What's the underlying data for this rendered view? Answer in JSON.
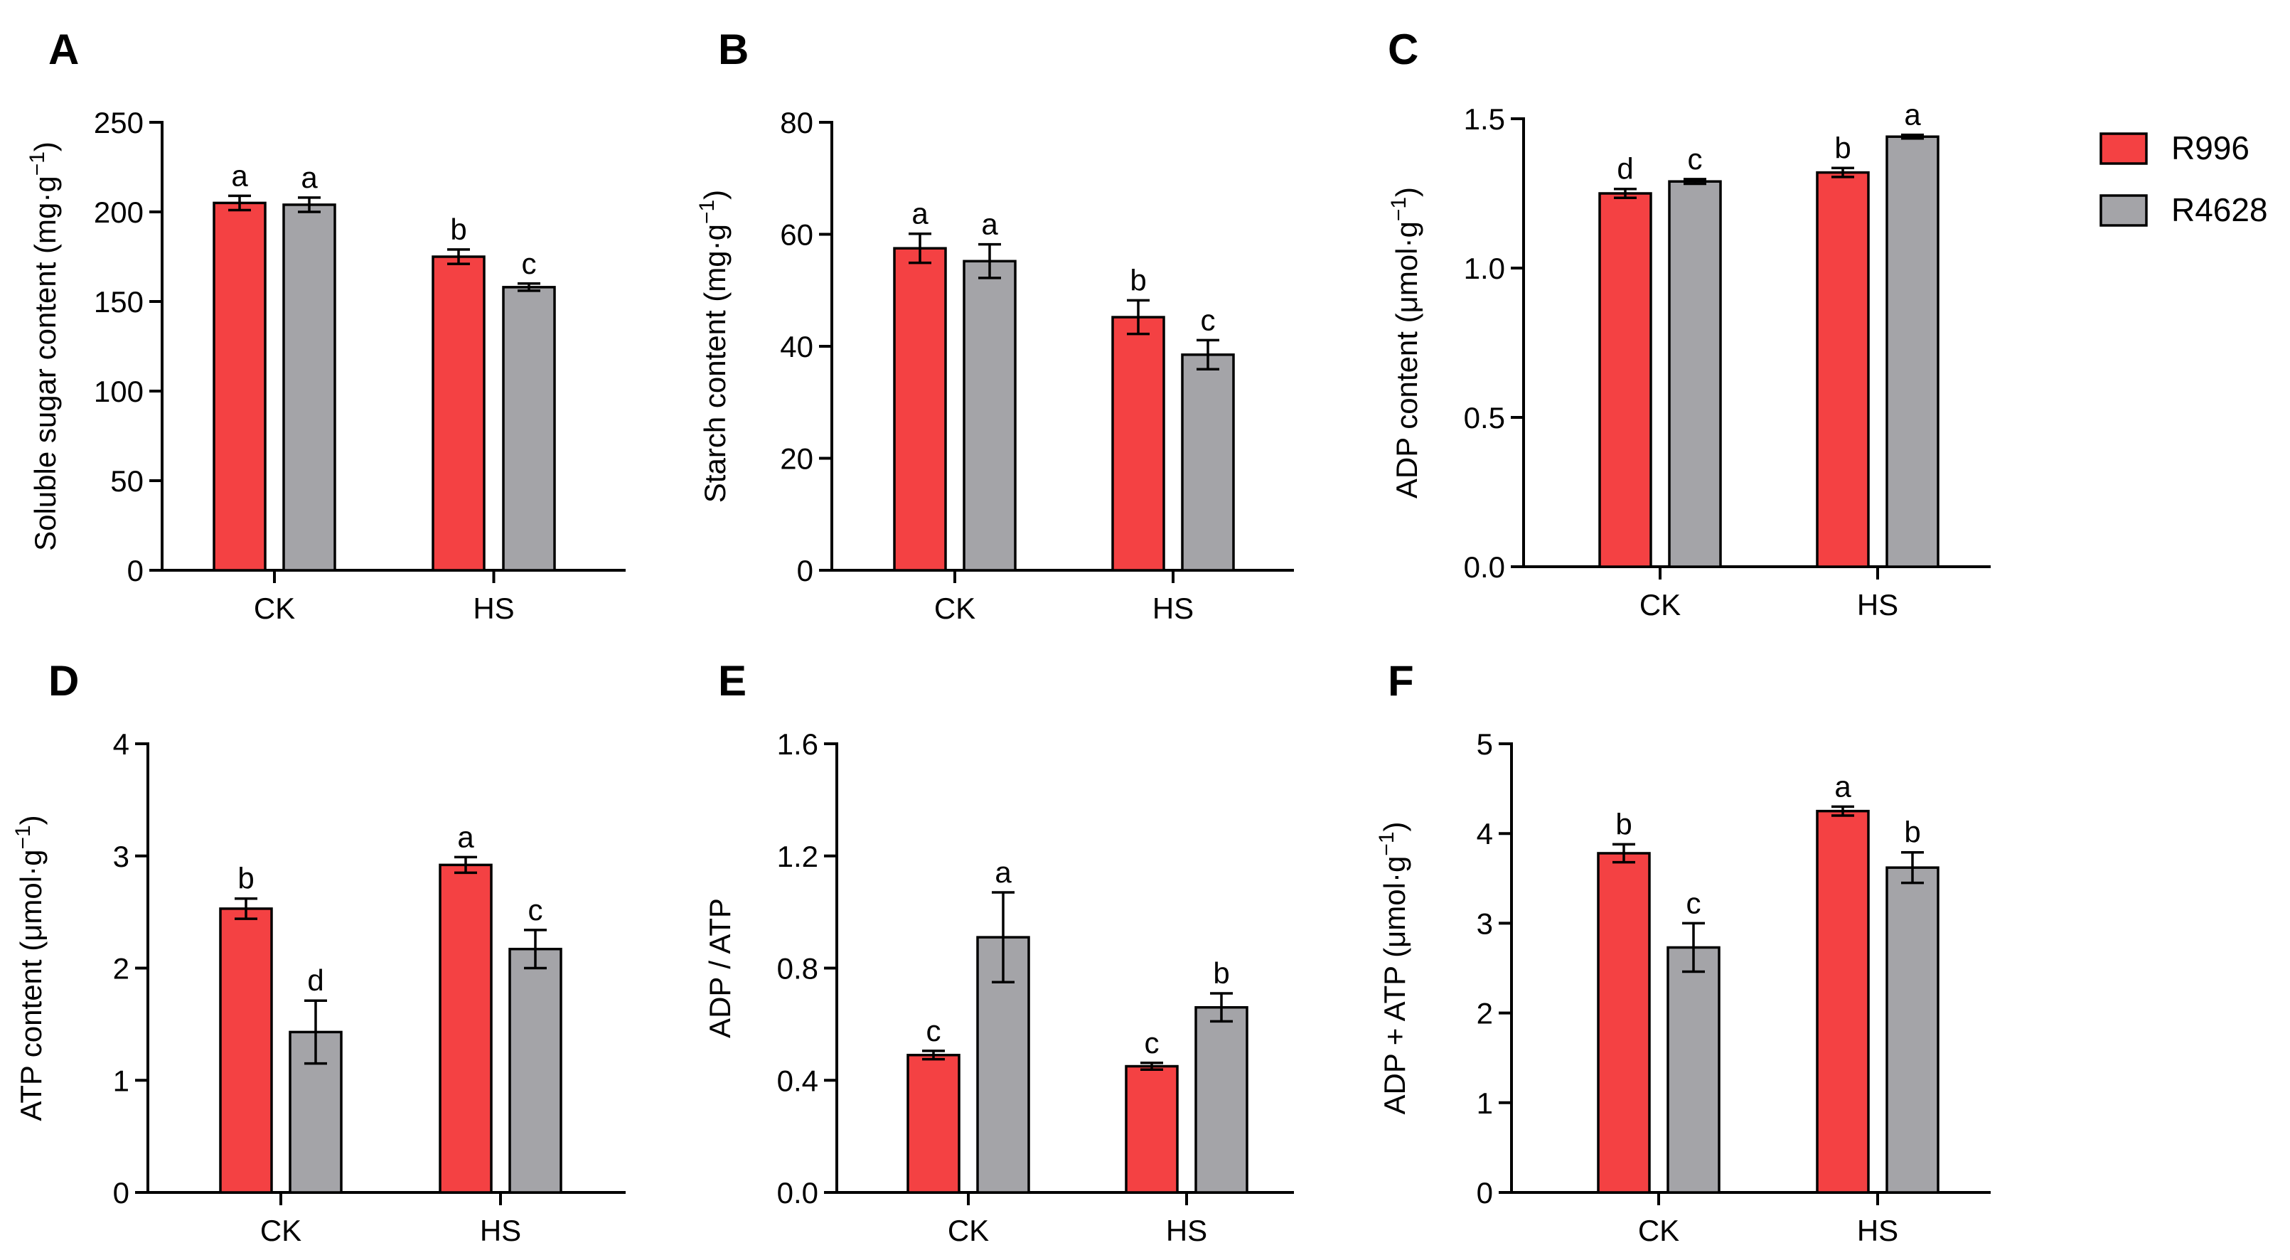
{
  "legend": {
    "items": [
      {
        "name": "R996",
        "color": "#f44143"
      },
      {
        "name": "R4628",
        "color": "#a4a4a8"
      }
    ]
  },
  "chart_data": [
    {
      "panel": "A",
      "type": "bar",
      "ylabel": "Soluble sugar content (mg·g",
      "ylabel_sup": "−1",
      "ylabel_end": ")",
      "categories": [
        "CK",
        "HS"
      ],
      "ylim": [
        0,
        250
      ],
      "yticks": [
        0,
        50,
        100,
        150,
        200,
        250
      ],
      "ytick_labels": [
        "0",
        "50",
        "100",
        "150",
        "200",
        "250"
      ],
      "series": [
        {
          "name": "R996",
          "values": [
            205,
            175
          ],
          "errors": [
            4,
            4
          ],
          "letters": [
            "a",
            "b"
          ]
        },
        {
          "name": "R4628",
          "values": [
            204,
            158
          ],
          "errors": [
            4,
            2
          ],
          "letters": [
            "a",
            "c"
          ]
        }
      ]
    },
    {
      "panel": "B",
      "type": "bar",
      "ylabel": "Starch content (mg·g",
      "ylabel_sup": "−1",
      "ylabel_end": ")",
      "categories": [
        "CK",
        "HS"
      ],
      "ylim": [
        0,
        80
      ],
      "yticks": [
        0,
        20,
        40,
        60,
        80
      ],
      "ytick_labels": [
        "0",
        "20",
        "40",
        "60",
        "80"
      ],
      "series": [
        {
          "name": "R996",
          "values": [
            57.5,
            45.2
          ],
          "errors": [
            2.6,
            3.0
          ],
          "letters": [
            "a",
            "b"
          ]
        },
        {
          "name": "R4628",
          "values": [
            55.2,
            38.5
          ],
          "errors": [
            3.0,
            2.6
          ],
          "letters": [
            "a",
            "c"
          ]
        }
      ]
    },
    {
      "panel": "C",
      "type": "bar",
      "ylabel": "ADP content (μmol·g",
      "ylabel_sup": "−1",
      "ylabel_end": ")",
      "categories": [
        "CK",
        "HS"
      ],
      "ylim": [
        0,
        1.5
      ],
      "yticks": [
        0,
        0.5,
        1.0,
        1.5
      ],
      "ytick_labels": [
        "0.0",
        "0.5",
        "1.0",
        "1.5"
      ],
      "series": [
        {
          "name": "R996",
          "values": [
            1.25,
            1.32
          ],
          "errors": [
            0.015,
            0.015
          ],
          "letters": [
            "d",
            "b"
          ]
        },
        {
          "name": "R4628",
          "values": [
            1.29,
            1.44
          ],
          "errors": [
            0.008,
            0.006
          ],
          "letters": [
            "c",
            "a"
          ]
        }
      ]
    },
    {
      "panel": "D",
      "type": "bar",
      "ylabel": "ATP content (μmol·g",
      "ylabel_sup": "−1",
      "ylabel_end": ")",
      "categories": [
        "CK",
        "HS"
      ],
      "ylim": [
        0,
        4
      ],
      "yticks": [
        0,
        1,
        2,
        3,
        4
      ],
      "ytick_labels": [
        "0",
        "1",
        "2",
        "3",
        "4"
      ],
      "series": [
        {
          "name": "R996",
          "values": [
            2.53,
            2.92
          ],
          "errors": [
            0.09,
            0.07
          ],
          "letters": [
            "b",
            "a"
          ]
        },
        {
          "name": "R4628",
          "values": [
            1.43,
            2.17
          ],
          "errors": [
            0.28,
            0.17
          ],
          "letters": [
            "d",
            "c"
          ]
        }
      ]
    },
    {
      "panel": "E",
      "type": "bar",
      "ylabel": "ADP / ATP",
      "ylabel_sup": "",
      "ylabel_end": "",
      "categories": [
        "CK",
        "HS"
      ],
      "ylim": [
        0,
        1.6
      ],
      "yticks": [
        0,
        0.4,
        0.8,
        1.2,
        1.6
      ],
      "ytick_labels": [
        "0.0",
        "0.4",
        "0.8",
        "1.2",
        "1.6"
      ],
      "series": [
        {
          "name": "R996",
          "values": [
            0.49,
            0.45
          ],
          "errors": [
            0.015,
            0.012
          ],
          "letters": [
            "c",
            "c"
          ]
        },
        {
          "name": "R4628",
          "values": [
            0.91,
            0.66
          ],
          "errors": [
            0.16,
            0.05
          ],
          "letters": [
            "a",
            "b"
          ]
        }
      ]
    },
    {
      "panel": "F",
      "type": "bar",
      "ylabel": "ADP + ATP (μmol·g",
      "ylabel_sup": "−1",
      "ylabel_end": ")",
      "categories": [
        "CK",
        "HS"
      ],
      "ylim": [
        0,
        5
      ],
      "yticks": [
        0,
        1,
        2,
        3,
        4,
        5
      ],
      "ytick_labels": [
        "0",
        "1",
        "2",
        "3",
        "4",
        "5"
      ],
      "series": [
        {
          "name": "R996",
          "values": [
            3.78,
            4.25
          ],
          "errors": [
            0.1,
            0.05
          ],
          "letters": [
            "b",
            "a"
          ]
        },
        {
          "name": "R4628",
          "values": [
            2.73,
            3.62
          ],
          "errors": [
            0.27,
            0.17
          ],
          "letters": [
            "c",
            "b"
          ]
        }
      ]
    }
  ]
}
